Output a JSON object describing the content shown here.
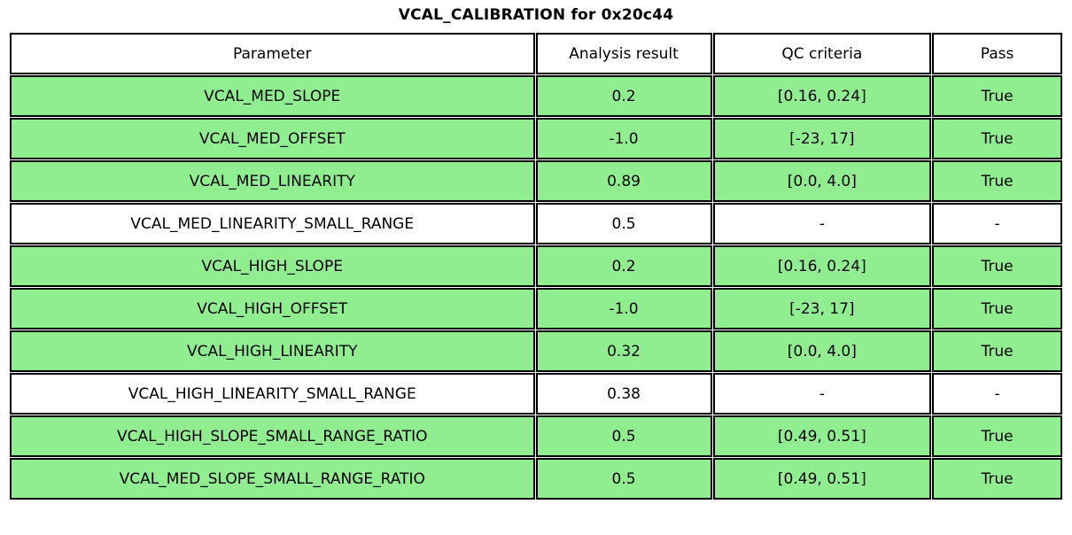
{
  "title": "VCAL_CALIBRATION for 0x20c44",
  "colors": {
    "pass_row_bg": "#90EE90",
    "neutral_row_bg": "#FFFFFF",
    "border": "#000000",
    "text": "#000000"
  },
  "chart_data": {
    "type": "table",
    "title": "VCAL_CALIBRATION for 0x20c44",
    "columns": [
      "Parameter",
      "Analysis result",
      "QC criteria",
      "Pass"
    ],
    "rows": [
      {
        "parameter": "VCAL_MED_SLOPE",
        "analysis_result": "0.2",
        "qc_criteria": "[0.16, 0.24]",
        "pass": "True",
        "highlight": true
      },
      {
        "parameter": "VCAL_MED_OFFSET",
        "analysis_result": "-1.0",
        "qc_criteria": "[-23, 17]",
        "pass": "True",
        "highlight": true
      },
      {
        "parameter": "VCAL_MED_LINEARITY",
        "analysis_result": "0.89",
        "qc_criteria": "[0.0, 4.0]",
        "pass": "True",
        "highlight": true
      },
      {
        "parameter": "VCAL_MED_LINEARITY_SMALL_RANGE",
        "analysis_result": "0.5",
        "qc_criteria": "-",
        "pass": "-",
        "highlight": false
      },
      {
        "parameter": "VCAL_HIGH_SLOPE",
        "analysis_result": "0.2",
        "qc_criteria": "[0.16, 0.24]",
        "pass": "True",
        "highlight": true
      },
      {
        "parameter": "VCAL_HIGH_OFFSET",
        "analysis_result": "-1.0",
        "qc_criteria": "[-23, 17]",
        "pass": "True",
        "highlight": true
      },
      {
        "parameter": "VCAL_HIGH_LINEARITY",
        "analysis_result": "0.32",
        "qc_criteria": "[0.0, 4.0]",
        "pass": "True",
        "highlight": true
      },
      {
        "parameter": "VCAL_HIGH_LINEARITY_SMALL_RANGE",
        "analysis_result": "0.38",
        "qc_criteria": "-",
        "pass": "-",
        "highlight": false
      },
      {
        "parameter": "VCAL_HIGH_SLOPE_SMALL_RANGE_RATIO",
        "analysis_result": "0.5",
        "qc_criteria": "[0.49, 0.51]",
        "pass": "True",
        "highlight": true
      },
      {
        "parameter": "VCAL_MED_SLOPE_SMALL_RANGE_RATIO",
        "analysis_result": "0.5",
        "qc_criteria": "[0.49, 0.51]",
        "pass": "True",
        "highlight": true
      }
    ]
  }
}
